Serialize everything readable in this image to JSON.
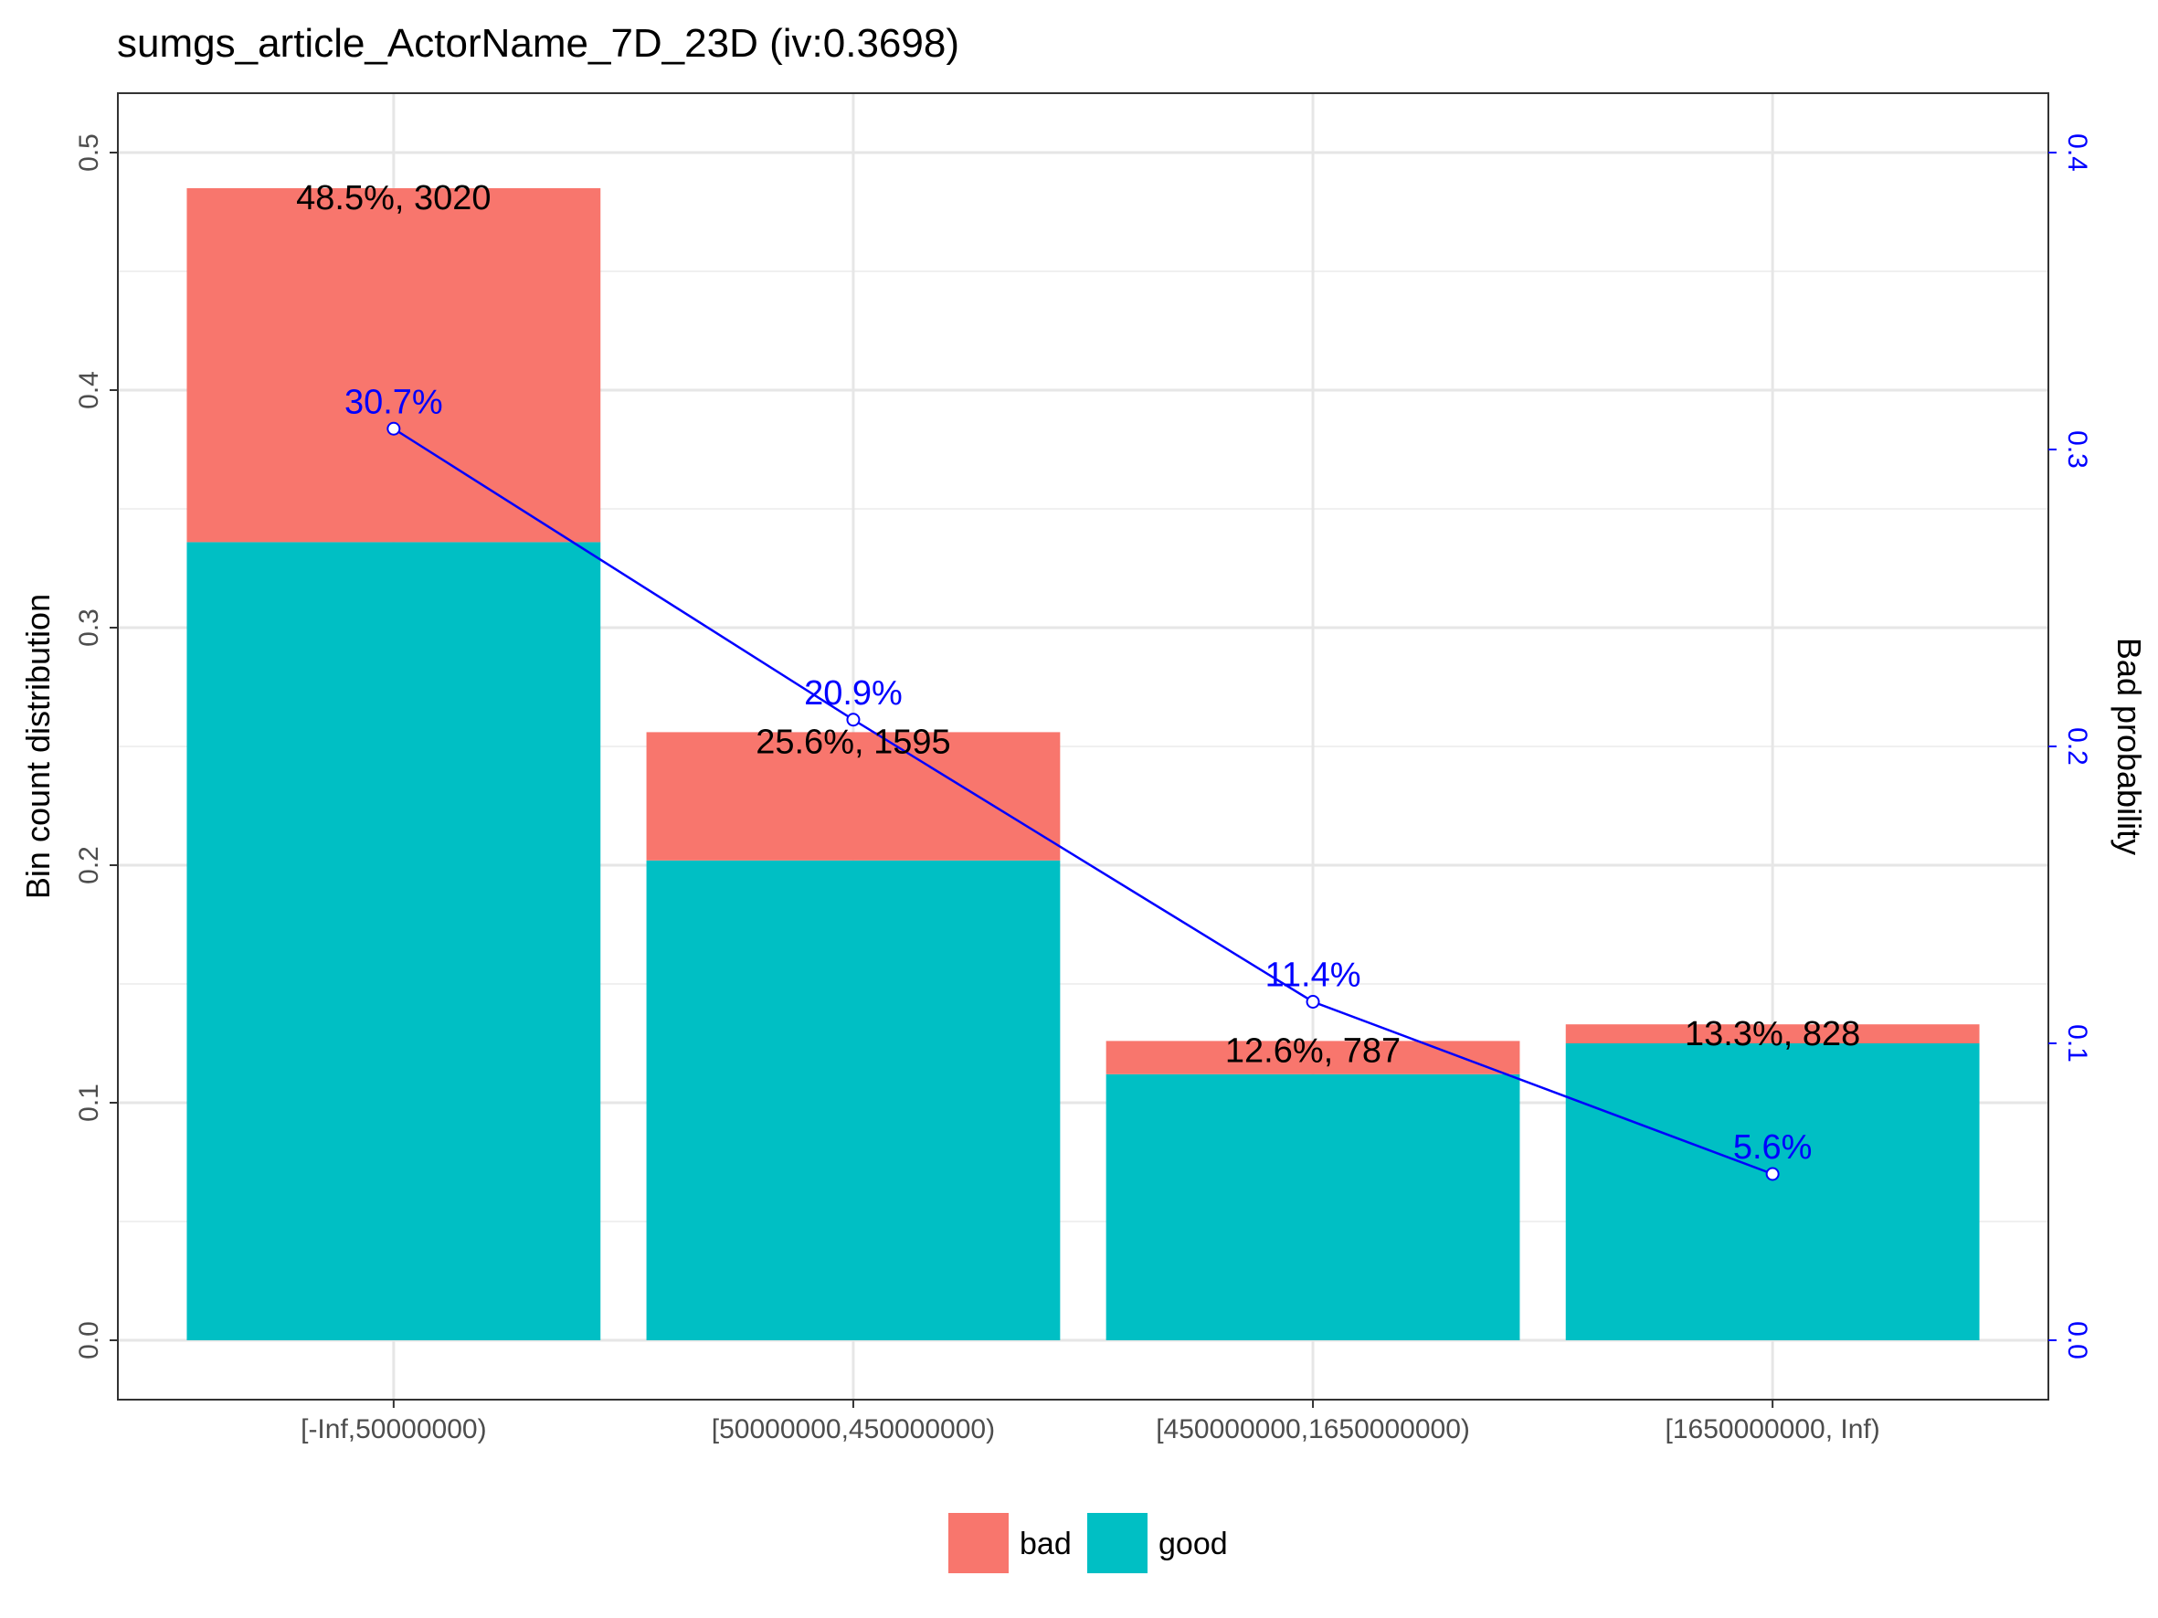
{
  "chart_data": {
    "type": "bar",
    "title": "sumgs_article_ActorName_7D_23D  (iv:0.3698)",
    "categories": [
      "[-Inf,50000000)",
      "[50000000,450000000)",
      "[450000000,1650000000)",
      "[1650000000, Inf)"
    ],
    "series": [
      {
        "name": "good",
        "values": [
          0.336,
          0.202,
          0.112,
          0.125
        ],
        "color": "#00BFC4"
      },
      {
        "name": "bad",
        "values": [
          0.149,
          0.054,
          0.014,
          0.008
        ],
        "color": "#F8766D"
      }
    ],
    "bar_labels": [
      "48.5%, 3020",
      "25.6%, 1595",
      "12.6%, 787",
      "13.3%, 828"
    ],
    "bad_probability": {
      "values": [
        0.307,
        0.209,
        0.114,
        0.056
      ],
      "labels": [
        "30.7%",
        "20.9%",
        "11.4%",
        "5.6%"
      ],
      "color": "#0000FF"
    },
    "ylabel": "Bin count distribution",
    "y2label": "Bad probability",
    "ylim": [
      -0.025,
      0.525
    ],
    "y2lim": [
      -0.02,
      0.42
    ],
    "yticks": [
      "0.0",
      "0.1",
      "0.2",
      "0.3",
      "0.4",
      "0.5"
    ],
    "y2ticks": [
      "0.0",
      "0.1",
      "0.2",
      "0.3",
      "0.4"
    ],
    "legend": {
      "position": "bottom",
      "entries": [
        "bad",
        "good"
      ]
    },
    "grid": true
  }
}
